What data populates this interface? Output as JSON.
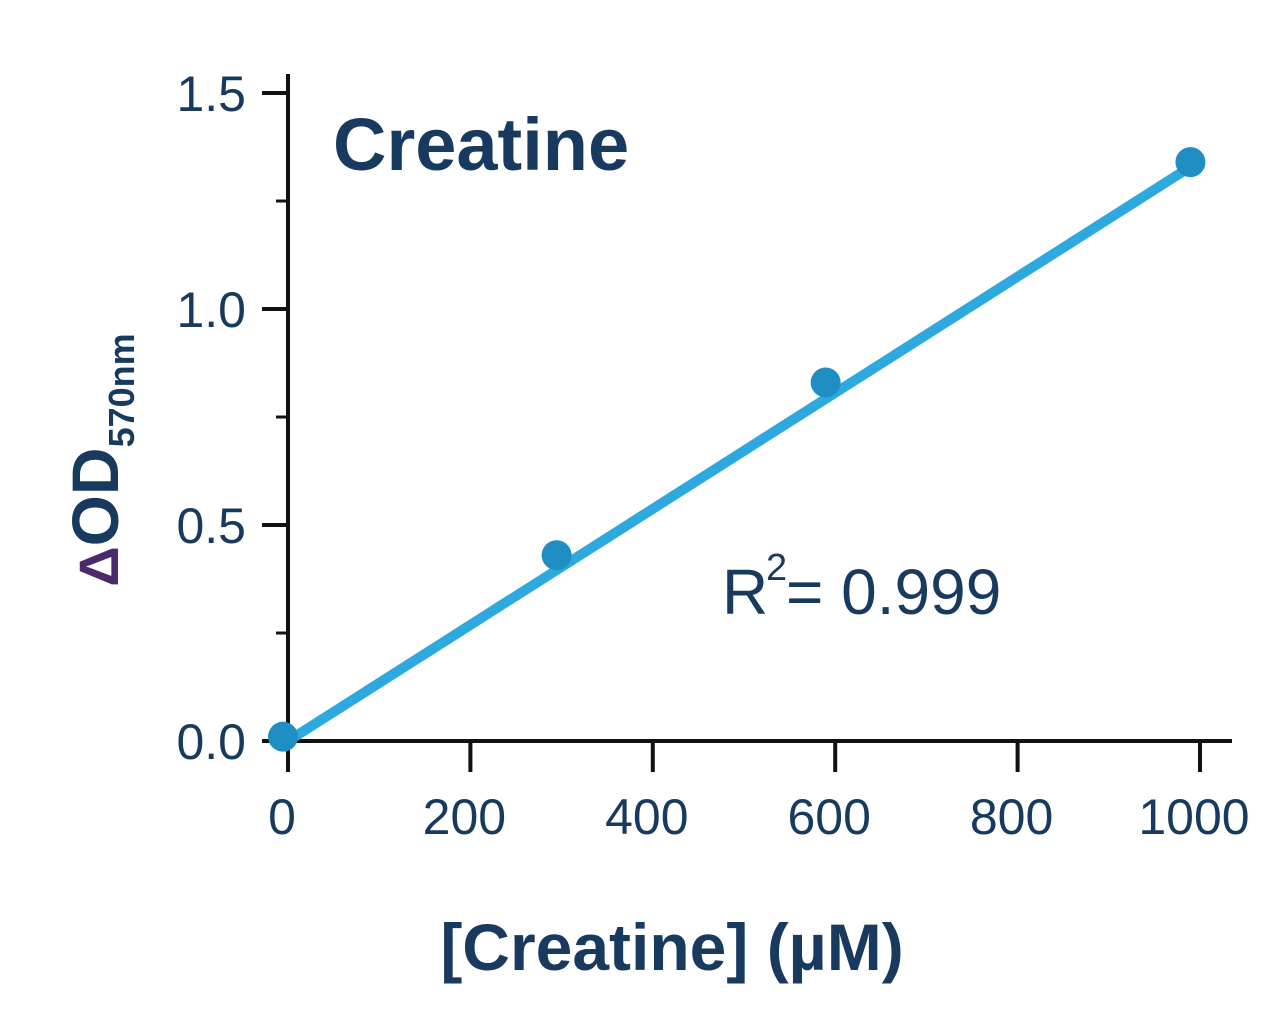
{
  "chart_data": {
    "type": "scatter",
    "title": "Creatine",
    "xlabel": "[Creatine]  (µM)",
    "ylabel": {
      "delta": "Δ",
      "main": "OD",
      "subscript": "570nm"
    },
    "xlim": [
      0,
      1000
    ],
    "ylim": [
      0,
      1.5
    ],
    "x_ticks": [
      0,
      200,
      400,
      600,
      800,
      1000
    ],
    "x_tick_labels": [
      "0",
      "200",
      "400",
      "600",
      "800",
      "1000"
    ],
    "y_ticks": [
      0.0,
      0.5,
      1.0,
      1.5
    ],
    "y_tick_labels": [
      "0.0",
      "0.5",
      "1.0",
      "1.5"
    ],
    "series": [
      {
        "points": [
          {
            "x": 0,
            "y": 0.01
          },
          {
            "x": 300,
            "y": 0.43
          },
          {
            "x": 595,
            "y": 0.83
          },
          {
            "x": 995,
            "y": 1.34
          }
        ]
      }
    ],
    "fit_line": {
      "x": [
        0,
        990
      ],
      "y": [
        0.0,
        1.33
      ]
    },
    "annotation": {
      "base": "R",
      "superscript": "2",
      "text": "= 0.999"
    },
    "grid": false,
    "legend": "none"
  },
  "colors": {
    "axis": "#111111",
    "text": "#173a5e",
    "delta": "#4b2a6b",
    "line": "#2ea9df",
    "marker": "#1f8fc3"
  }
}
